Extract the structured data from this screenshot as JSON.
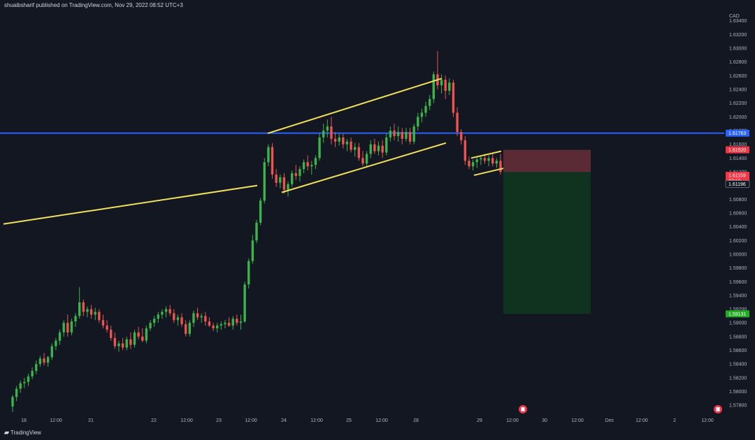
{
  "header": {
    "publisher_text": "shuaibsharif published on TradingView.com, Nov 29, 2022 08:52 UTC+3"
  },
  "footer": {
    "brand_icon": "tradingview-logo-icon",
    "brand_text": "TradingView"
  },
  "colors": {
    "background": "#131722",
    "up_candle": "#26a69a",
    "up_candle_bright": "#3bb44a",
    "down_candle": "#ef5350",
    "trendline": "#f1e05a",
    "horizontal_line": "#2962ff",
    "stop_zone": "#5a2a35",
    "target_zone": "#10331f"
  },
  "chart_data": {
    "type": "candlestick",
    "symbol_currency": "CAD",
    "y_axis": {
      "ticks": [
        "1.63400",
        "1.63200",
        "1.63000",
        "1.62800",
        "1.62600",
        "1.62400",
        "1.62200",
        "1.62000",
        "1.61800",
        "1.61600",
        "1.61400",
        "1.61200",
        "1.61000",
        "1.60800",
        "1.60600",
        "1.60400",
        "1.60200",
        "1.60000",
        "1.59800",
        "1.59600",
        "1.59400",
        "1.59200",
        "1.59000",
        "1.58800",
        "1.58600",
        "1.58400",
        "1.58200",
        "1.58000",
        "1.57800"
      ],
      "range": [
        1.5768,
        1.6355
      ]
    },
    "x_axis": {
      "ticks": [
        "18",
        "12:00",
        "21",
        "22",
        "12:00",
        "23",
        "12:00",
        "24",
        "12:00",
        "25",
        "12:00",
        "28",
        "29",
        "12:00",
        "30",
        "12:00",
        "Dec",
        "12:00",
        "2",
        "12:00"
      ]
    },
    "price_labels": [
      {
        "name": "horizontal-level",
        "value": "1.61763",
        "color": "#2962ff"
      },
      {
        "name": "stop-loss",
        "value": "1.61520",
        "color": "#f23645"
      },
      {
        "name": "last-price",
        "value": "1.61159",
        "sub": "27:13",
        "color": "#f23645"
      },
      {
        "name": "entry",
        "value": "1.61196",
        "color": "#131722"
      },
      {
        "name": "take-profit",
        "value": "1.59131",
        "color": "#22ab23"
      }
    ],
    "horizontal_level": 1.61763,
    "trade_box": {
      "direction": "short",
      "stop": 1.6152,
      "entry": 1.61196,
      "target": 1.59131
    },
    "candles": [
      {
        "o": 1.5778,
        "h": 1.5795,
        "l": 1.577,
        "c": 1.5792
      },
      {
        "o": 1.5792,
        "h": 1.5808,
        "l": 1.5786,
        "c": 1.5804
      },
      {
        "o": 1.5804,
        "h": 1.5816,
        "l": 1.5798,
        "c": 1.5812
      },
      {
        "o": 1.5812,
        "h": 1.582,
        "l": 1.5805,
        "c": 1.5814
      },
      {
        "o": 1.5814,
        "h": 1.5826,
        "l": 1.5808,
        "c": 1.5822
      },
      {
        "o": 1.5822,
        "h": 1.5835,
        "l": 1.5818,
        "c": 1.583
      },
      {
        "o": 1.583,
        "h": 1.5845,
        "l": 1.5825,
        "c": 1.584
      },
      {
        "o": 1.584,
        "h": 1.5852,
        "l": 1.5836,
        "c": 1.5848
      },
      {
        "o": 1.5848,
        "h": 1.5856,
        "l": 1.5838,
        "c": 1.5842
      },
      {
        "o": 1.5842,
        "h": 1.5852,
        "l": 1.5836,
        "c": 1.585
      },
      {
        "o": 1.585,
        "h": 1.587,
        "l": 1.5846,
        "c": 1.5866
      },
      {
        "o": 1.5866,
        "h": 1.5878,
        "l": 1.586,
        "c": 1.5874
      },
      {
        "o": 1.5874,
        "h": 1.589,
        "l": 1.5868,
        "c": 1.5886
      },
      {
        "o": 1.5886,
        "h": 1.5904,
        "l": 1.588,
        "c": 1.59
      },
      {
        "o": 1.59,
        "h": 1.5912,
        "l": 1.588,
        "c": 1.5886
      },
      {
        "o": 1.5886,
        "h": 1.5906,
        "l": 1.5882,
        "c": 1.5902
      },
      {
        "o": 1.5902,
        "h": 1.5914,
        "l": 1.5894,
        "c": 1.591
      },
      {
        "o": 1.591,
        "h": 1.5952,
        "l": 1.5906,
        "c": 1.593
      },
      {
        "o": 1.593,
        "h": 1.5934,
        "l": 1.591,
        "c": 1.5916
      },
      {
        "o": 1.5916,
        "h": 1.5924,
        "l": 1.5908,
        "c": 1.592
      },
      {
        "o": 1.592,
        "h": 1.5926,
        "l": 1.5906,
        "c": 1.5912
      },
      {
        "o": 1.5912,
        "h": 1.5922,
        "l": 1.5904,
        "c": 1.5916
      },
      {
        "o": 1.5916,
        "h": 1.592,
        "l": 1.59,
        "c": 1.5904
      },
      {
        "o": 1.5904,
        "h": 1.5912,
        "l": 1.5892,
        "c": 1.5896
      },
      {
        "o": 1.5896,
        "h": 1.5904,
        "l": 1.5886,
        "c": 1.589
      },
      {
        "o": 1.589,
        "h": 1.5896,
        "l": 1.5874,
        "c": 1.5878
      },
      {
        "o": 1.5878,
        "h": 1.5886,
        "l": 1.5862,
        "c": 1.5866
      },
      {
        "o": 1.5866,
        "h": 1.5874,
        "l": 1.5858,
        "c": 1.587
      },
      {
        "o": 1.587,
        "h": 1.5878,
        "l": 1.586,
        "c": 1.5864
      },
      {
        "o": 1.5864,
        "h": 1.588,
        "l": 1.586,
        "c": 1.5876
      },
      {
        "o": 1.5876,
        "h": 1.5886,
        "l": 1.5862,
        "c": 1.5868
      },
      {
        "o": 1.5868,
        "h": 1.589,
        "l": 1.5864,
        "c": 1.5886
      },
      {
        "o": 1.5886,
        "h": 1.5894,
        "l": 1.5876,
        "c": 1.588
      },
      {
        "o": 1.588,
        "h": 1.5892,
        "l": 1.5872,
        "c": 1.5874
      },
      {
        "o": 1.5874,
        "h": 1.5896,
        "l": 1.587,
        "c": 1.5892
      },
      {
        "o": 1.5892,
        "h": 1.5904,
        "l": 1.5888,
        "c": 1.59
      },
      {
        "o": 1.59,
        "h": 1.591,
        "l": 1.5894,
        "c": 1.5906
      },
      {
        "o": 1.5906,
        "h": 1.5916,
        "l": 1.59,
        "c": 1.5912
      },
      {
        "o": 1.5912,
        "h": 1.592,
        "l": 1.5906,
        "c": 1.5916
      },
      {
        "o": 1.5916,
        "h": 1.5924,
        "l": 1.5908,
        "c": 1.592
      },
      {
        "o": 1.592,
        "h": 1.5926,
        "l": 1.591,
        "c": 1.5914
      },
      {
        "o": 1.5914,
        "h": 1.592,
        "l": 1.59,
        "c": 1.5904
      },
      {
        "o": 1.5904,
        "h": 1.5912,
        "l": 1.5896,
        "c": 1.5908
      },
      {
        "o": 1.5908,
        "h": 1.5914,
        "l": 1.5894,
        "c": 1.5898
      },
      {
        "o": 1.5898,
        "h": 1.5904,
        "l": 1.588,
        "c": 1.5884
      },
      {
        "o": 1.5884,
        "h": 1.5904,
        "l": 1.588,
        "c": 1.59
      },
      {
        "o": 1.59,
        "h": 1.5918,
        "l": 1.5894,
        "c": 1.5914
      },
      {
        "o": 1.5914,
        "h": 1.5922,
        "l": 1.5904,
        "c": 1.5908
      },
      {
        "o": 1.5908,
        "h": 1.5914,
        "l": 1.59,
        "c": 1.591
      },
      {
        "o": 1.591,
        "h": 1.5916,
        "l": 1.5896,
        "c": 1.5902
      },
      {
        "o": 1.5902,
        "h": 1.5908,
        "l": 1.5894,
        "c": 1.5896
      },
      {
        "o": 1.5896,
        "h": 1.59,
        "l": 1.5888,
        "c": 1.5892
      },
      {
        "o": 1.5892,
        "h": 1.59,
        "l": 1.5886,
        "c": 1.5896
      },
      {
        "o": 1.5896,
        "h": 1.5902,
        "l": 1.589,
        "c": 1.5898
      },
      {
        "o": 1.5898,
        "h": 1.5904,
        "l": 1.5892,
        "c": 1.59
      },
      {
        "o": 1.59,
        "h": 1.5908,
        "l": 1.5894,
        "c": 1.5896
      },
      {
        "o": 1.5896,
        "h": 1.591,
        "l": 1.589,
        "c": 1.5906
      },
      {
        "o": 1.5906,
        "h": 1.5912,
        "l": 1.5896,
        "c": 1.59
      },
      {
        "o": 1.59,
        "h": 1.5912,
        "l": 1.589,
        "c": 1.5902
      },
      {
        "o": 1.5902,
        "h": 1.596,
        "l": 1.59,
        "c": 1.5956
      },
      {
        "o": 1.5956,
        "h": 1.5994,
        "l": 1.595,
        "c": 1.599
      },
      {
        "o": 1.599,
        "h": 1.6028,
        "l": 1.5986,
        "c": 1.602
      },
      {
        "o": 1.602,
        "h": 1.605,
        "l": 1.6016,
        "c": 1.6046
      },
      {
        "o": 1.6046,
        "h": 1.6082,
        "l": 1.6042,
        "c": 1.6078
      },
      {
        "o": 1.6078,
        "h": 1.614,
        "l": 1.6074,
        "c": 1.6134
      },
      {
        "o": 1.6134,
        "h": 1.616,
        "l": 1.6128,
        "c": 1.6156
      },
      {
        "o": 1.6156,
        "h": 1.6162,
        "l": 1.611,
        "c": 1.6116
      },
      {
        "o": 1.6116,
        "h": 1.6124,
        "l": 1.6098,
        "c": 1.6104
      },
      {
        "o": 1.6104,
        "h": 1.6116,
        "l": 1.6096,
        "c": 1.6112
      },
      {
        "o": 1.6112,
        "h": 1.6118,
        "l": 1.6088,
        "c": 1.6094
      },
      {
        "o": 1.6094,
        "h": 1.6106,
        "l": 1.6084,
        "c": 1.6102
      },
      {
        "o": 1.6102,
        "h": 1.6122,
        "l": 1.6098,
        "c": 1.6118
      },
      {
        "o": 1.6118,
        "h": 1.613,
        "l": 1.6108,
        "c": 1.6114
      },
      {
        "o": 1.6114,
        "h": 1.6128,
        "l": 1.6106,
        "c": 1.6124
      },
      {
        "o": 1.6124,
        "h": 1.6138,
        "l": 1.6118,
        "c": 1.6134
      },
      {
        "o": 1.6134,
        "h": 1.6144,
        "l": 1.6122,
        "c": 1.6128
      },
      {
        "o": 1.6128,
        "h": 1.6136,
        "l": 1.6116,
        "c": 1.613
      },
      {
        "o": 1.613,
        "h": 1.6144,
        "l": 1.6124,
        "c": 1.614
      },
      {
        "o": 1.614,
        "h": 1.6176,
        "l": 1.6136,
        "c": 1.617
      },
      {
        "o": 1.617,
        "h": 1.619,
        "l": 1.6162,
        "c": 1.618
      },
      {
        "o": 1.618,
        "h": 1.6196,
        "l": 1.617,
        "c": 1.6186
      },
      {
        "o": 1.6186,
        "h": 1.62,
        "l": 1.616,
        "c": 1.6168
      },
      {
        "o": 1.6168,
        "h": 1.6178,
        "l": 1.6156,
        "c": 1.6164
      },
      {
        "o": 1.6164,
        "h": 1.6176,
        "l": 1.6158,
        "c": 1.617
      },
      {
        "o": 1.617,
        "h": 1.6176,
        "l": 1.6154,
        "c": 1.616
      },
      {
        "o": 1.616,
        "h": 1.6168,
        "l": 1.615,
        "c": 1.6164
      },
      {
        "o": 1.6164,
        "h": 1.617,
        "l": 1.6148,
        "c": 1.6152
      },
      {
        "o": 1.6152,
        "h": 1.6162,
        "l": 1.6142,
        "c": 1.6156
      },
      {
        "o": 1.6156,
        "h": 1.6162,
        "l": 1.6136,
        "c": 1.614
      },
      {
        "o": 1.614,
        "h": 1.615,
        "l": 1.6128,
        "c": 1.6132
      },
      {
        "o": 1.6132,
        "h": 1.615,
        "l": 1.6126,
        "c": 1.6146
      },
      {
        "o": 1.6146,
        "h": 1.6166,
        "l": 1.614,
        "c": 1.616
      },
      {
        "o": 1.616,
        "h": 1.6168,
        "l": 1.6146,
        "c": 1.615
      },
      {
        "o": 1.615,
        "h": 1.6164,
        "l": 1.6144,
        "c": 1.6158
      },
      {
        "o": 1.6158,
        "h": 1.6166,
        "l": 1.614,
        "c": 1.6148
      },
      {
        "o": 1.6148,
        "h": 1.6176,
        "l": 1.6144,
        "c": 1.617
      },
      {
        "o": 1.617,
        "h": 1.6186,
        "l": 1.6164,
        "c": 1.618
      },
      {
        "o": 1.618,
        "h": 1.619,
        "l": 1.6166,
        "c": 1.6172
      },
      {
        "o": 1.6172,
        "h": 1.6186,
        "l": 1.6164,
        "c": 1.6178
      },
      {
        "o": 1.6178,
        "h": 1.6184,
        "l": 1.616,
        "c": 1.6168
      },
      {
        "o": 1.6168,
        "h": 1.6184,
        "l": 1.6164,
        "c": 1.6178
      },
      {
        "o": 1.6178,
        "h": 1.6184,
        "l": 1.616,
        "c": 1.6164
      },
      {
        "o": 1.6164,
        "h": 1.619,
        "l": 1.616,
        "c": 1.6186
      },
      {
        "o": 1.6186,
        "h": 1.6206,
        "l": 1.618,
        "c": 1.62
      },
      {
        "o": 1.62,
        "h": 1.6212,
        "l": 1.6192,
        "c": 1.6206
      },
      {
        "o": 1.6206,
        "h": 1.6222,
        "l": 1.62,
        "c": 1.6216
      },
      {
        "o": 1.6216,
        "h": 1.6232,
        "l": 1.621,
        "c": 1.6226
      },
      {
        "o": 1.6226,
        "h": 1.6266,
        "l": 1.622,
        "c": 1.6262
      },
      {
        "o": 1.6262,
        "h": 1.6296,
        "l": 1.624,
        "c": 1.6246
      },
      {
        "o": 1.6246,
        "h": 1.6262,
        "l": 1.6234,
        "c": 1.6254
      },
      {
        "o": 1.6254,
        "h": 1.626,
        "l": 1.6226,
        "c": 1.6238
      },
      {
        "o": 1.6238,
        "h": 1.6256,
        "l": 1.6232,
        "c": 1.625
      },
      {
        "o": 1.625,
        "h": 1.6254,
        "l": 1.62,
        "c": 1.6206
      },
      {
        "o": 1.6206,
        "h": 1.6214,
        "l": 1.6172,
        "c": 1.6178
      },
      {
        "o": 1.6178,
        "h": 1.6182,
        "l": 1.616,
        "c": 1.6166
      },
      {
        "o": 1.6166,
        "h": 1.6172,
        "l": 1.613,
        "c": 1.6136
      },
      {
        "o": 1.6136,
        "h": 1.6142,
        "l": 1.6124,
        "c": 1.6128
      },
      {
        "o": 1.6128,
        "h": 1.6138,
        "l": 1.6122,
        "c": 1.6134
      },
      {
        "o": 1.6134,
        "h": 1.6142,
        "l": 1.6126,
        "c": 1.6138
      },
      {
        "o": 1.6138,
        "h": 1.6144,
        "l": 1.613,
        "c": 1.614
      },
      {
        "o": 1.614,
        "h": 1.6146,
        "l": 1.6132,
        "c": 1.6136
      },
      {
        "o": 1.6136,
        "h": 1.6144,
        "l": 1.6128,
        "c": 1.614
      },
      {
        "o": 1.614,
        "h": 1.6146,
        "l": 1.6128,
        "c": 1.6132
      },
      {
        "o": 1.6132,
        "h": 1.614,
        "l": 1.6126,
        "c": 1.6136
      },
      {
        "o": 1.6136,
        "h": 1.6146,
        "l": 1.6116,
        "c": 1.612
      }
    ]
  }
}
